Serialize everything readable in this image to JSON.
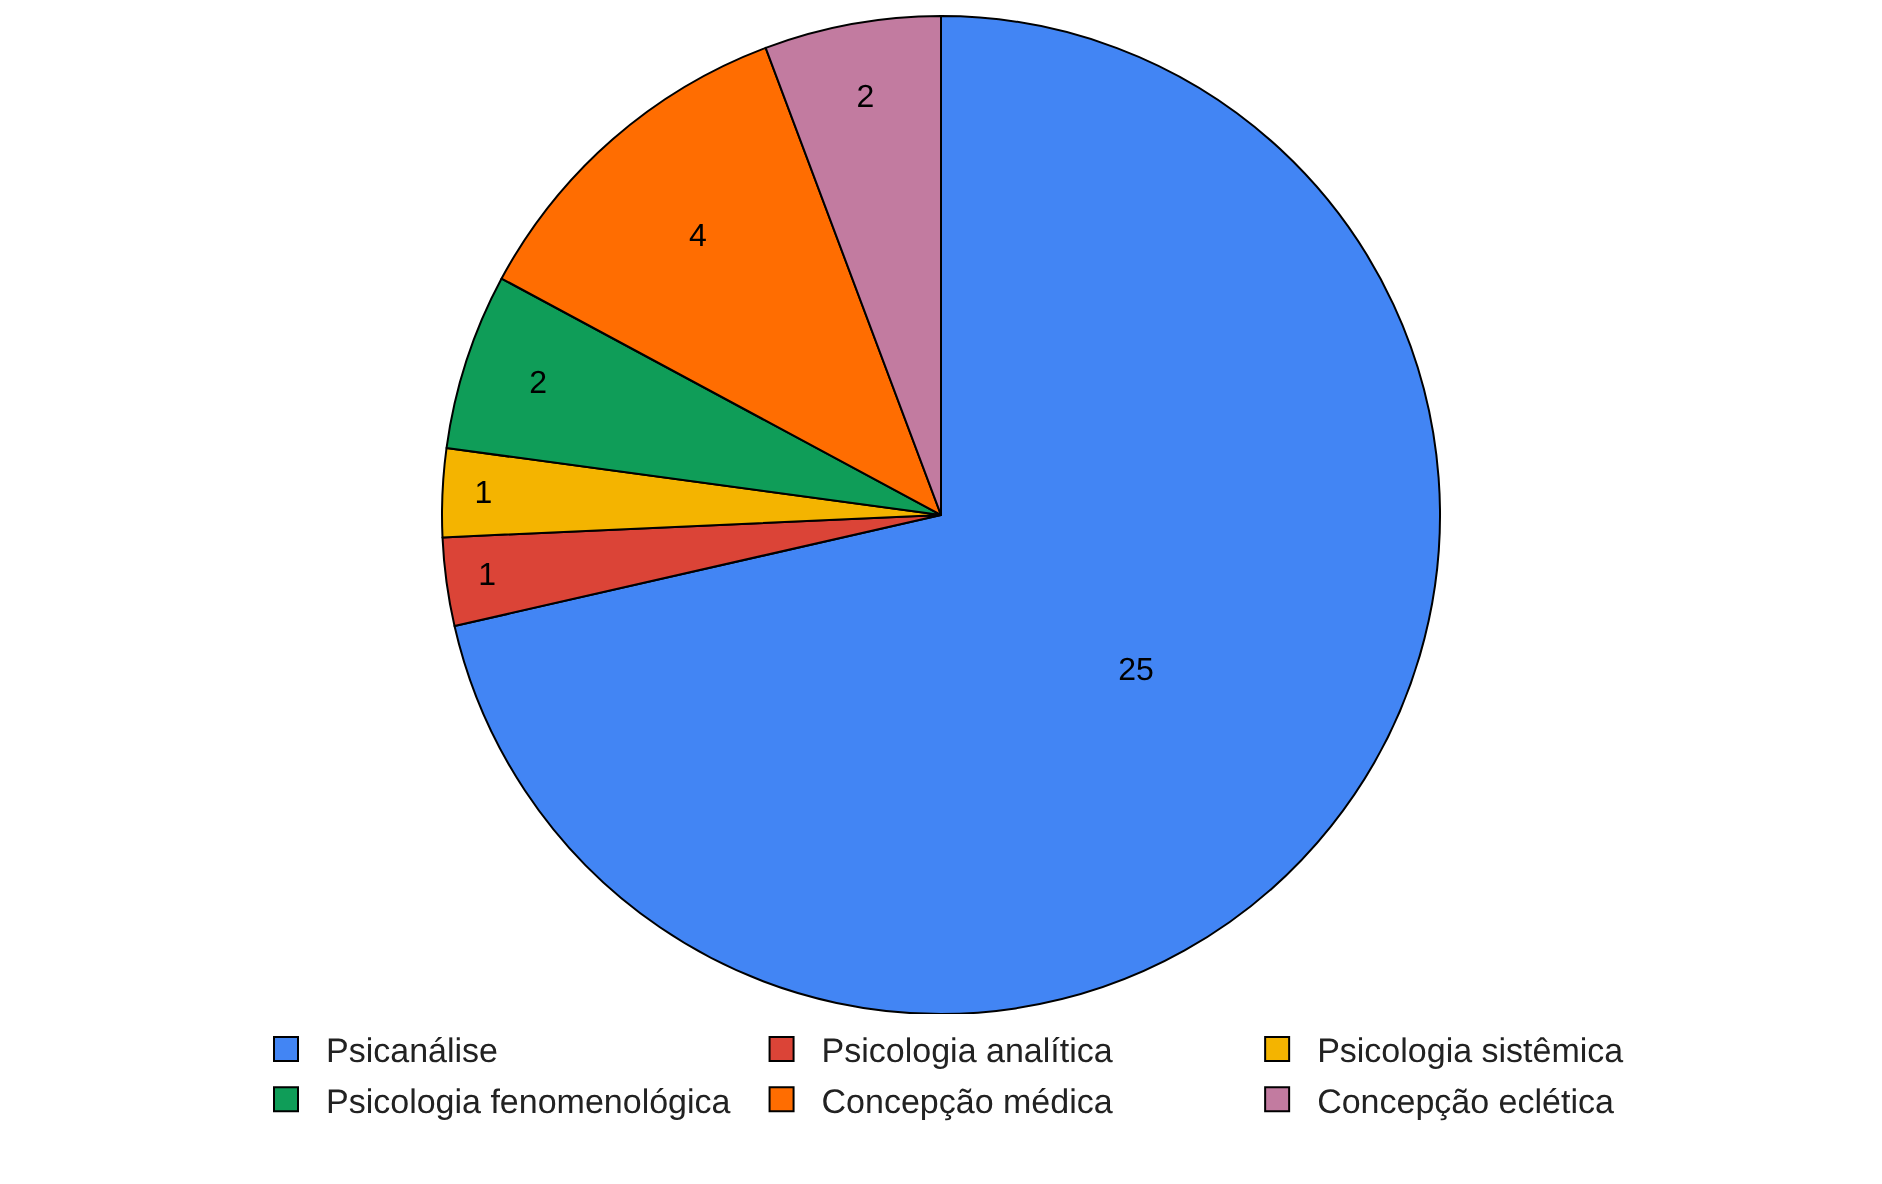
{
  "chart_data": {
    "type": "pie",
    "categories": [
      "Psicanálise",
      "Psicologia analítica",
      "Psicologia sistêmica",
      "Psicologia fenomenológica",
      "Concepção médica",
      "Concepção eclética"
    ],
    "values": [
      25,
      1,
      1,
      2,
      4,
      2
    ],
    "colors": [
      "#4285f4",
      "#db4437",
      "#f4b400",
      "#0f9d58",
      "#ff6d01",
      "#c27ba0"
    ],
    "data_labels": true,
    "legend": "bottom"
  }
}
